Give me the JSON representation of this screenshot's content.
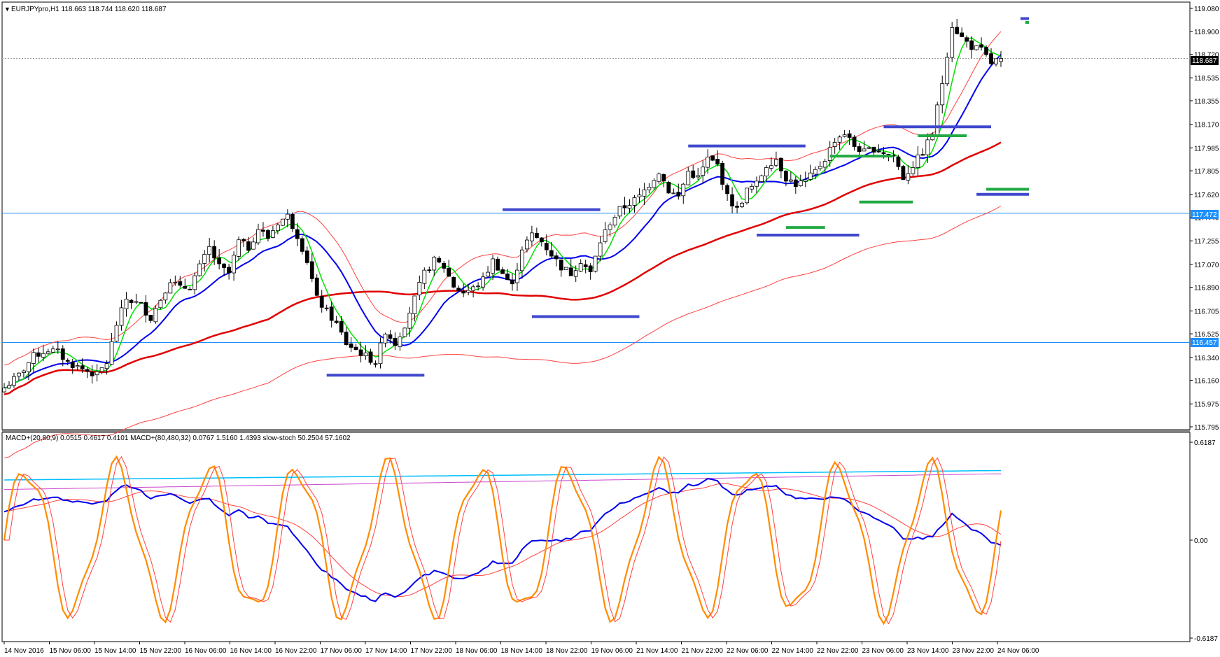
{
  "main_panel": {
    "header": "EURJPYpro,H1  118.663 118.744 118.620 118.687",
    "y_ticks": [
      "119.080",
      "118.900",
      "118.720",
      "118.535",
      "118.355",
      "118.170",
      "117.985",
      "117.805",
      "117.620",
      "117.440",
      "117.255",
      "117.070",
      "116.890",
      "116.705",
      "116.525",
      "116.340",
      "116.160",
      "115.975",
      "115.795"
    ],
    "current_price_label": "118.687",
    "level_labels": [
      "117.472",
      "116.457"
    ]
  },
  "sub_panel": {
    "header": "MACD+(20,80,9) 0.0515 0.4617 0.4101  MACD+(80,480,32) 0.0767 1.5160 1.4393  slow-stoch 50.2504 57.1602",
    "y_ticks": [
      "0.6187",
      "0.00",
      "-0.6187"
    ]
  },
  "x_axis": {
    "labels": [
      "14 Nov 2016",
      "15 Nov 06:00",
      "15 Nov 14:00",
      "15 Nov 22:00",
      "16 Nov 06:00",
      "16 Nov 14:00",
      "16 Nov 22:00",
      "17 Nov 06:00",
      "17 Nov 14:00",
      "17 Nov 22:00",
      "18 Nov 06:00",
      "18 Nov 14:00",
      "18 Nov 22:00",
      "19 Nov 06:00",
      "21 Nov 14:00",
      "21 Nov 22:00",
      "22 Nov 06:00",
      "22 Nov 14:00",
      "22 Nov 22:00",
      "23 Nov 06:00",
      "23 Nov 14:00",
      "23 Nov 22:00",
      "24 Nov 06:00"
    ]
  },
  "chart_data": [
    {
      "type": "candlestick",
      "symbol": "EURJPYpro",
      "timeframe": "H1",
      "ylim": [
        115.795,
        119.08
      ],
      "last": {
        "open": 118.663,
        "high": 118.744,
        "low": 118.62,
        "close": 118.687
      },
      "horizontal_levels": [
        117.472,
        116.457
      ],
      "close_path": [
        [
          0,
          116.1
        ],
        [
          3,
          116.2
        ],
        [
          6,
          116.35
        ],
        [
          9,
          116.4
        ],
        [
          11,
          116.38
        ],
        [
          13,
          116.3
        ],
        [
          16,
          116.25
        ],
        [
          19,
          116.2
        ],
        [
          21,
          116.3
        ],
        [
          23,
          116.6
        ],
        [
          25,
          116.8
        ],
        [
          28,
          116.75
        ],
        [
          30,
          116.65
        ],
        [
          32,
          116.8
        ],
        [
          34,
          116.95
        ],
        [
          36,
          116.88
        ],
        [
          38,
          116.9
        ],
        [
          40,
          117.05
        ],
        [
          42,
          117.2
        ],
        [
          44,
          117.05
        ],
        [
          46,
          117.0
        ],
        [
          48,
          117.25
        ],
        [
          50,
          117.2
        ],
        [
          52,
          117.35
        ],
        [
          54,
          117.28
        ],
        [
          56,
          117.4
        ],
        [
          58,
          117.45
        ],
        [
          60,
          117.3
        ],
        [
          62,
          117.1
        ],
        [
          64,
          116.8
        ],
        [
          66,
          116.7
        ],
        [
          68,
          116.6
        ],
        [
          70,
          116.45
        ],
        [
          72,
          116.4
        ],
        [
          74,
          116.35
        ],
        [
          76,
          116.3
        ],
        [
          78,
          116.55
        ],
        [
          80,
          116.45
        ],
        [
          82,
          116.6
        ],
        [
          84,
          116.8
        ],
        [
          86,
          117.0
        ],
        [
          88,
          117.1
        ],
        [
          90,
          117.05
        ],
        [
          92,
          116.9
        ],
        [
          94,
          116.85
        ],
        [
          96,
          116.88
        ],
        [
          98,
          116.95
        ],
        [
          100,
          117.1
        ],
        [
          102,
          117.0
        ],
        [
          104,
          116.9
        ],
        [
          106,
          117.2
        ],
        [
          108,
          117.3
        ],
        [
          110,
          117.25
        ],
        [
          112,
          117.15
        ],
        [
          114,
          117.05
        ],
        [
          116,
          117.0
        ],
        [
          118,
          117.1
        ],
        [
          120,
          117.0
        ],
        [
          122,
          117.25
        ],
        [
          124,
          117.4
        ],
        [
          126,
          117.5
        ],
        [
          128,
          117.55
        ],
        [
          130,
          117.6
        ],
        [
          132,
          117.7
        ],
        [
          134,
          117.8
        ],
        [
          136,
          117.65
        ],
        [
          138,
          117.6
        ],
        [
          140,
          117.8
        ],
        [
          142,
          117.75
        ],
        [
          144,
          117.9
        ],
        [
          146,
          117.85
        ],
        [
          148,
          117.6
        ],
        [
          150,
          117.5
        ],
        [
          152,
          117.65
        ],
        [
          154,
          117.7
        ],
        [
          156,
          117.85
        ],
        [
          158,
          117.9
        ],
        [
          160,
          117.75
        ],
        [
          162,
          117.7
        ],
        [
          164,
          117.72
        ],
        [
          166,
          117.8
        ],
        [
          168,
          117.9
        ],
        [
          170,
          118.05
        ],
        [
          172,
          118.1
        ],
        [
          174,
          118.0
        ],
        [
          176,
          117.95
        ],
        [
          178,
          117.98
        ],
        [
          180,
          117.95
        ],
        [
          182,
          117.92
        ],
        [
          184,
          117.75
        ],
        [
          186,
          117.85
        ],
        [
          188,
          117.95
        ],
        [
          190,
          118.1
        ],
        [
          192,
          118.5
        ],
        [
          194,
          118.95
        ],
        [
          196,
          118.85
        ],
        [
          198,
          118.78
        ],
        [
          200,
          118.75
        ],
        [
          202,
          118.65
        ],
        [
          204,
          118.69
        ]
      ]
    },
    {
      "type": "line",
      "panel": "indicator",
      "ylim": [
        -0.6187,
        0.6187
      ],
      "indicators": [
        "MACD+(20,80,9)",
        "MACD+(80,480,32)",
        "slow-stoch"
      ],
      "values": {
        "macd_20_80_9": [
          0.0515,
          0.4617,
          0.4101
        ],
        "macd_80_480_32": [
          0.0767,
          1.516,
          1.4393
        ],
        "slow_stoch": [
          50.2504,
          57.1602
        ]
      }
    }
  ],
  "colors": {
    "bull_candle": "#ffffff",
    "bear_candle": "#000000",
    "sma_fast": "#00e000",
    "sma_mid": "#0000ee",
    "sma_slow": "#e00000",
    "band": "#ff4040",
    "horizontal_level": "#1e90ff",
    "support_resistance": "#3f48cc",
    "swing_marks": "#22aa44",
    "stoch": "#ff8c00",
    "macd_line": "#0000ee",
    "macd_signal": "#ff4040",
    "macd_long": "#00bfff",
    "macd_long_signal": "#cc44cc"
  }
}
